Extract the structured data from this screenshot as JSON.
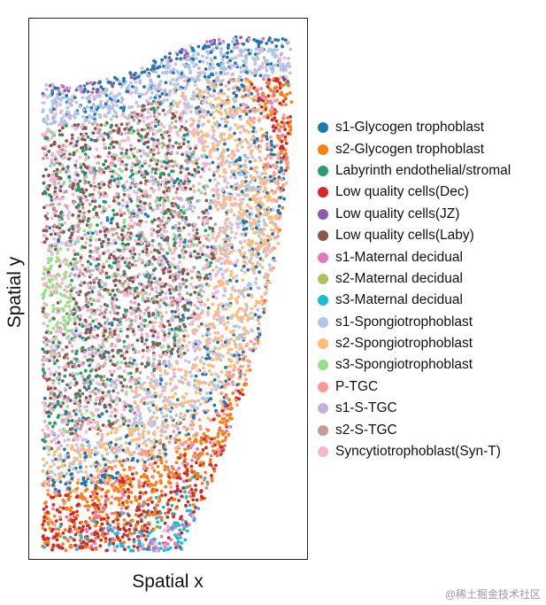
{
  "chart_data": {
    "type": "scatter",
    "title": "",
    "xlabel": "Spatial x",
    "ylabel": "Spatial y",
    "grid": false,
    "legend_placement": "right",
    "series": [
      {
        "name": "s1-Glycogen trophoblast",
        "color": "#1f77b4"
      },
      {
        "name": "s2-Glycogen trophoblast",
        "color": "#ff7f0e"
      },
      {
        "name": "Labyrinth endothelial/stromal",
        "color": "#279e68"
      },
      {
        "name": "Low quality cells(Dec)",
        "color": "#d62728"
      },
      {
        "name": "Low quality cells(JZ)",
        "color": "#8c5bb0"
      },
      {
        "name": "Low quality cells(Laby)",
        "color": "#8c564b"
      },
      {
        "name": "s1-Maternal decidual",
        "color": "#e377c2"
      },
      {
        "name": "s2-Maternal decidual",
        "color": "#b5bd61"
      },
      {
        "name": "s3-Maternal decidual",
        "color": "#17becf"
      },
      {
        "name": "s1-Spongiotrophoblast",
        "color": "#aec7e8"
      },
      {
        "name": "s2-Spongiotrophoblast",
        "color": "#ffbb78"
      },
      {
        "name": "s3-Spongiotrophoblast",
        "color": "#98df8a"
      },
      {
        "name": "P-TGC",
        "color": "#ff9896"
      },
      {
        "name": "s1-S-TGC",
        "color": "#c5b0d5"
      },
      {
        "name": "s2-S-TGC",
        "color": "#c49c94"
      },
      {
        "name": "Syncytiotrophoblast(Syn-T)",
        "color": "#f7b6d2"
      }
    ]
  },
  "watermark": "@稀土掘金技术社区"
}
